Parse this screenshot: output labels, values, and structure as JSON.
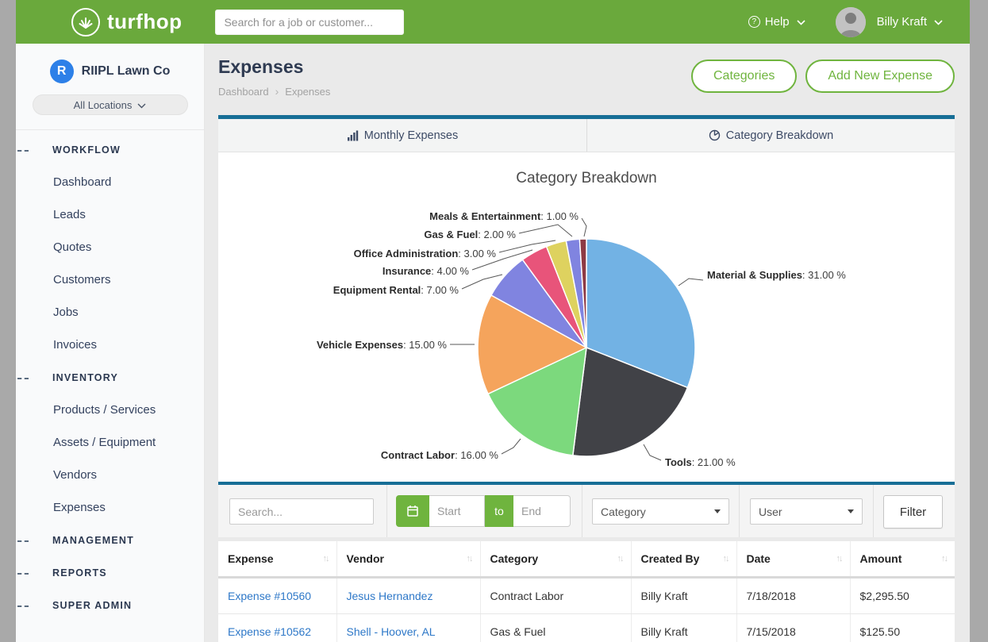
{
  "colors": {
    "header_green": "#6aa93c",
    "accent_green": "#6fb43e",
    "teal_bar": "#176e96",
    "link_blue": "#2e78c8"
  },
  "header": {
    "brand": "turfhop",
    "search_placeholder": "Search for a job or customer...",
    "help_label": "Help",
    "user_name": "Billy Kraft"
  },
  "sidebar": {
    "company_initial": "R",
    "company_name": "RIIPL Lawn Co",
    "location_selector": "All Locations",
    "items": [
      {
        "type": "section",
        "label": "WORKFLOW"
      },
      {
        "type": "link",
        "label": "Dashboard"
      },
      {
        "type": "link",
        "label": "Leads"
      },
      {
        "type": "link",
        "label": "Quotes"
      },
      {
        "type": "link",
        "label": "Customers"
      },
      {
        "type": "link",
        "label": "Jobs"
      },
      {
        "type": "link",
        "label": "Invoices"
      },
      {
        "type": "section",
        "label": "INVENTORY"
      },
      {
        "type": "link",
        "label": "Products / Services"
      },
      {
        "type": "link",
        "label": "Assets / Equipment"
      },
      {
        "type": "link",
        "label": "Vendors"
      },
      {
        "type": "link",
        "label": "Expenses"
      },
      {
        "type": "section",
        "label": "MANAGEMENT"
      },
      {
        "type": "section",
        "label": "REPORTS"
      },
      {
        "type": "section",
        "label": "SUPER ADMIN"
      }
    ]
  },
  "page": {
    "title": "Expenses",
    "breadcrumb_home": "Dashboard",
    "breadcrumb_current": "Expenses",
    "action_categories": "Categories",
    "action_add": "Add New Expense"
  },
  "tabs": {
    "monthly": "Monthly Expenses",
    "breakdown": "Category Breakdown"
  },
  "chart_data": {
    "type": "pie",
    "title": "Category Breakdown",
    "legend_position": "none",
    "value_suffix": "%",
    "slices": [
      {
        "label": "Material & Supplies",
        "value": 31,
        "value_text": ": 31.00 %",
        "color": "#72b2e4"
      },
      {
        "label": "Tools",
        "value": 21,
        "value_text": ": 21.00 %",
        "color": "#414247"
      },
      {
        "label": "Contract Labor",
        "value": 16,
        "value_text": ": 16.00 %",
        "color": "#7cd97d"
      },
      {
        "label": "Vehicle Expenses",
        "value": 15,
        "value_text": ": 15.00 %",
        "color": "#f5a45c"
      },
      {
        "label": "Equipment Rental",
        "value": 7,
        "value_text": ": 7.00 %",
        "color": "#8084e0"
      },
      {
        "label": "Insurance",
        "value": 4,
        "value_text": ": 4.00 %",
        "color": "#e8547a"
      },
      {
        "label": "Office Administration",
        "value": 3,
        "value_text": ": 3.00 %",
        "color": "#ded25f"
      },
      {
        "label": "Gas & Fuel",
        "value": 2,
        "value_text": ": 2.00 %",
        "color": "#8084e0"
      },
      {
        "label": "Meals & Entertainment",
        "value": 1,
        "value_text": ": 1.00 %",
        "color": "#8e3a44"
      }
    ]
  },
  "filters": {
    "search_placeholder": "Search...",
    "date_start_placeholder": "Start",
    "date_separator": "to",
    "date_end_placeholder": "End",
    "category_value": "Category",
    "user_value": "User",
    "filter_button": "Filter"
  },
  "table": {
    "columns": [
      "Expense",
      "Vendor",
      "Category",
      "Created By",
      "Date",
      "Amount"
    ],
    "rows": [
      {
        "expense": "Expense #10560",
        "vendor": "Jesus Hernandez",
        "category": "Contract Labor",
        "created_by": "Billy Kraft",
        "date": "7/18/2018",
        "amount": "$2,295.50"
      },
      {
        "expense": "Expense #10562",
        "vendor": "Shell - Hoover, AL",
        "category": "Gas & Fuel",
        "created_by": "Billy Kraft",
        "date": "7/15/2018",
        "amount": "$125.50"
      }
    ]
  }
}
